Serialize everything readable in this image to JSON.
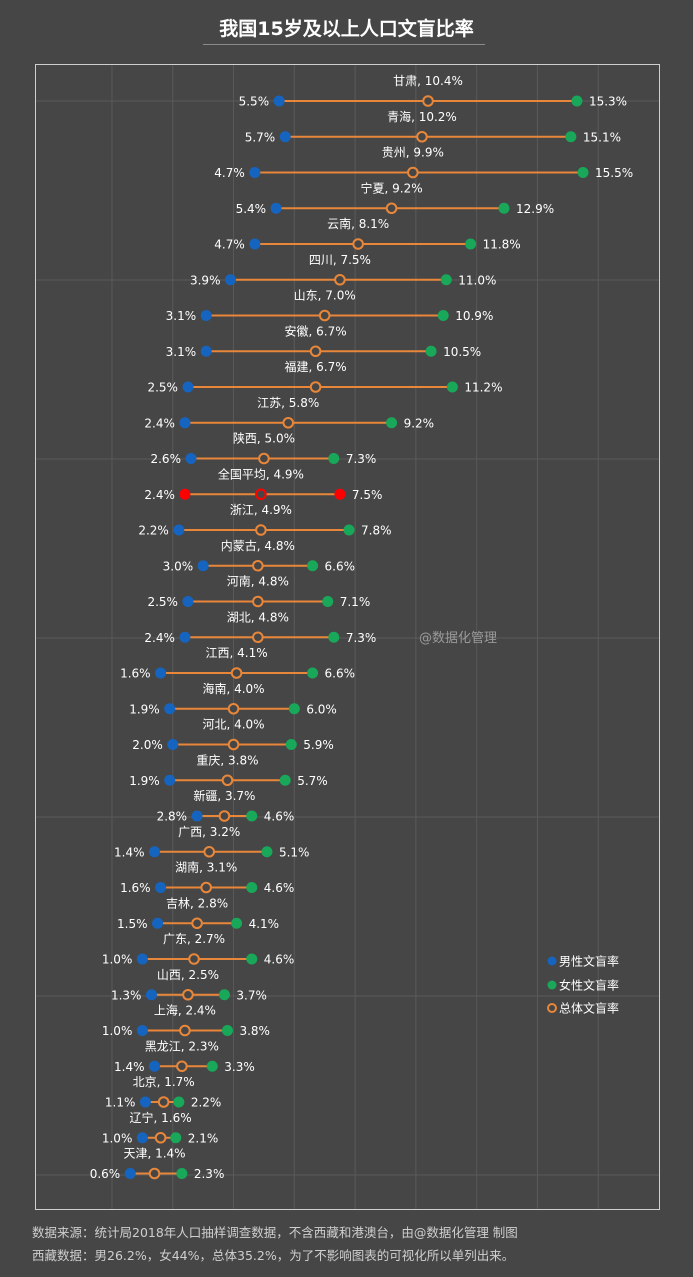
{
  "title": "我国15岁及以上人口文盲比率",
  "watermark": "@数据化管理",
  "footer": {
    "line1": "数据来源：统计局2018年人口抽样调查数据，不含西藏和港澳台，由@数据化管理  制图",
    "line2": "西藏数据：男26.2%，女44%，总体35.2%，为了不影响图表的可视化所以单列出来。"
  },
  "colors": {
    "background": "#464646",
    "male": "#1565c0",
    "female": "#19a85a",
    "total": "#e8873a",
    "highlight": "#ff0000",
    "grid": "#5a5a5a"
  },
  "chart_data": {
    "type": "dumbbell",
    "title": "我国15岁及以上人口文盲比率",
    "xlim": [
      -2.5,
      18
    ],
    "grid": true,
    "legend_position": "bottom-right",
    "series_names": [
      "男性文盲率",
      "女性文盲率",
      "总体文盲率"
    ],
    "highlight_category": "全国平均",
    "rows": [
      {
        "name": "甘肃",
        "male": 5.5,
        "female": 15.3,
        "total": 10.4
      },
      {
        "name": "青海",
        "male": 5.7,
        "female": 15.1,
        "total": 10.2
      },
      {
        "name": "贵州",
        "male": 4.7,
        "female": 15.5,
        "total": 9.9
      },
      {
        "name": "宁夏",
        "male": 5.4,
        "female": 12.9,
        "total": 9.2
      },
      {
        "name": "云南",
        "male": 4.7,
        "female": 11.8,
        "total": 8.1
      },
      {
        "name": "四川",
        "male": 3.9,
        "female": 11.0,
        "total": 7.5
      },
      {
        "name": "山东",
        "male": 3.1,
        "female": 10.9,
        "total": 7.0
      },
      {
        "name": "安徽",
        "male": 3.1,
        "female": 10.5,
        "total": 6.7
      },
      {
        "name": "福建",
        "male": 2.5,
        "female": 11.2,
        "total": 6.7
      },
      {
        "name": "江苏",
        "male": 2.4,
        "female": 9.2,
        "total": 5.8
      },
      {
        "name": "陕西",
        "male": 2.6,
        "female": 7.3,
        "total": 5.0
      },
      {
        "name": "全国平均",
        "male": 2.4,
        "female": 7.5,
        "total": 4.9
      },
      {
        "name": "浙江",
        "male": 2.2,
        "female": 7.8,
        "total": 4.9
      },
      {
        "name": "内蒙古",
        "male": 3.0,
        "female": 6.6,
        "total": 4.8
      },
      {
        "name": "河南",
        "male": 2.5,
        "female": 7.1,
        "total": 4.8
      },
      {
        "name": "湖北",
        "male": 2.4,
        "female": 7.3,
        "total": 4.8
      },
      {
        "name": "江西",
        "male": 1.6,
        "female": 6.6,
        "total": 4.1
      },
      {
        "name": "海南",
        "male": 1.9,
        "female": 6.0,
        "total": 4.0
      },
      {
        "name": "河北",
        "male": 2.0,
        "female": 5.9,
        "total": 4.0
      },
      {
        "name": "重庆",
        "male": 1.9,
        "female": 5.7,
        "total": 3.8
      },
      {
        "name": "新疆",
        "male": 2.8,
        "female": 4.6,
        "total": 3.7
      },
      {
        "name": "广西",
        "male": 1.4,
        "female": 5.1,
        "total": 3.2
      },
      {
        "name": "湖南",
        "male": 1.6,
        "female": 4.6,
        "total": 3.1
      },
      {
        "name": "吉林",
        "male": 1.5,
        "female": 4.1,
        "total": 2.8
      },
      {
        "name": "广东",
        "male": 1.0,
        "female": 4.6,
        "total": 2.7
      },
      {
        "name": "山西",
        "male": 1.3,
        "female": 3.7,
        "total": 2.5
      },
      {
        "name": "上海",
        "male": 1.0,
        "female": 3.8,
        "total": 2.4
      },
      {
        "name": "黑龙江",
        "male": 1.4,
        "female": 3.3,
        "total": 2.3
      },
      {
        "name": "北京",
        "male": 1.1,
        "female": 2.2,
        "total": 1.7
      },
      {
        "name": "辽宁",
        "male": 1.0,
        "female": 2.1,
        "total": 1.6
      },
      {
        "name": "天津",
        "male": 0.6,
        "female": 2.3,
        "total": 1.4
      }
    ]
  }
}
